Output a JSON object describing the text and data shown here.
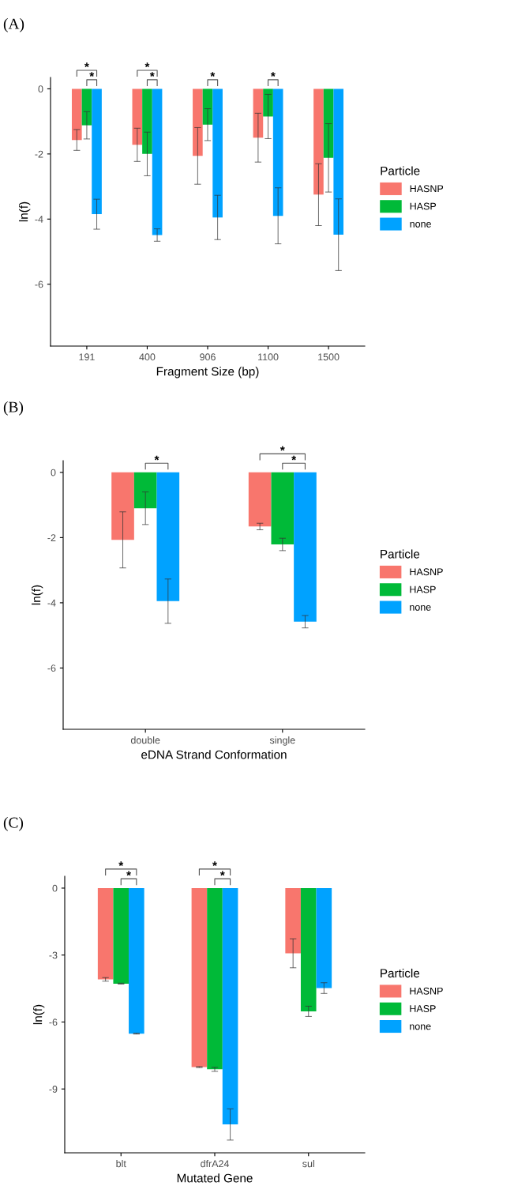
{
  "chart_data": [
    {
      "type": "bar",
      "title": "(A)",
      "xlabel": "Fragment Size (bp)",
      "ylabel": "ln(f)",
      "legend_title": "Particle",
      "legend": "right",
      "grid": false,
      "categories": [
        "191",
        "400",
        "906",
        "1100",
        "1500"
      ],
      "ylim": [
        -7.9,
        0.35
      ],
      "yticks": [
        0,
        -2,
        -4,
        -6
      ],
      "series": [
        {
          "name": "HASNP",
          "color": "#f8766d",
          "values": [
            -1.57,
            -1.72,
            -2.06,
            -1.5,
            -3.25
          ],
          "errors": [
            0.32,
            0.51,
            0.87,
            0.75,
            0.95
          ]
        },
        {
          "name": "HASP",
          "color": "#00ba38",
          "values": [
            -1.12,
            -2.0,
            -1.1,
            -0.85,
            -2.12
          ],
          "errors": [
            0.42,
            0.67,
            0.49,
            0.68,
            1.05
          ]
        },
        {
          "name": "none",
          "color": "#00a2ff",
          "values": [
            -3.85,
            -4.49,
            -3.95,
            -3.9,
            -4.48
          ],
          "errors": [
            0.46,
            0.19,
            0.68,
            0.86,
            1.1
          ]
        }
      ],
      "annotations": [
        "*",
        "*",
        "*",
        "*",
        "*",
        "*"
      ]
    },
    {
      "type": "bar",
      "title": "(B)",
      "xlabel": "eDNA Strand Conformation",
      "ylabel": "ln(f)",
      "legend_title": "Particle",
      "legend": "right",
      "grid": false,
      "categories": [
        "double",
        "single"
      ],
      "ylim": [
        -7.88,
        0.36
      ],
      "yticks": [
        0,
        -2,
        -4,
        -6
      ],
      "series": [
        {
          "name": "HASNP",
          "color": "#f8766d",
          "values": [
            -2.07,
            -1.66
          ],
          "errors": [
            0.86,
            0.1
          ]
        },
        {
          "name": "HASP",
          "color": "#00ba38",
          "values": [
            -1.1,
            -2.21
          ],
          "errors": [
            0.5,
            0.19
          ]
        },
        {
          "name": "none",
          "color": "#00a2ff",
          "values": [
            -3.95,
            -4.58
          ],
          "errors": [
            0.68,
            0.19
          ]
        }
      ],
      "annotations": [
        "*",
        "*",
        "*"
      ]
    },
    {
      "type": "bar",
      "title": "(C)",
      "xlabel": "Mutated Gene",
      "ylabel": "ln(f)",
      "legend_title": "Particle",
      "legend": "right",
      "grid": false,
      "categories": [
        "blt",
        "dfrA24",
        "sul"
      ],
      "ylim": [
        -11.86,
        0.53
      ],
      "yticks": [
        0,
        -3,
        -6,
        -9
      ],
      "series": [
        {
          "name": "HASNP",
          "color": "#f8766d",
          "values": [
            -4.09,
            -8.02,
            -2.92
          ],
          "errors": [
            0.08,
            0.02,
            0.65
          ]
        },
        {
          "name": "HASP",
          "color": "#00ba38",
          "values": [
            -4.28,
            -8.12,
            -5.52
          ],
          "errors": [
            0.02,
            0.09,
            0.23
          ]
        },
        {
          "name": "none",
          "color": "#00a2ff",
          "values": [
            -6.52,
            -10.59,
            -4.48
          ],
          "errors": [
            0.02,
            0.7,
            0.24
          ]
        }
      ],
      "annotations": [
        "*",
        "*",
        "*",
        "*"
      ]
    }
  ]
}
